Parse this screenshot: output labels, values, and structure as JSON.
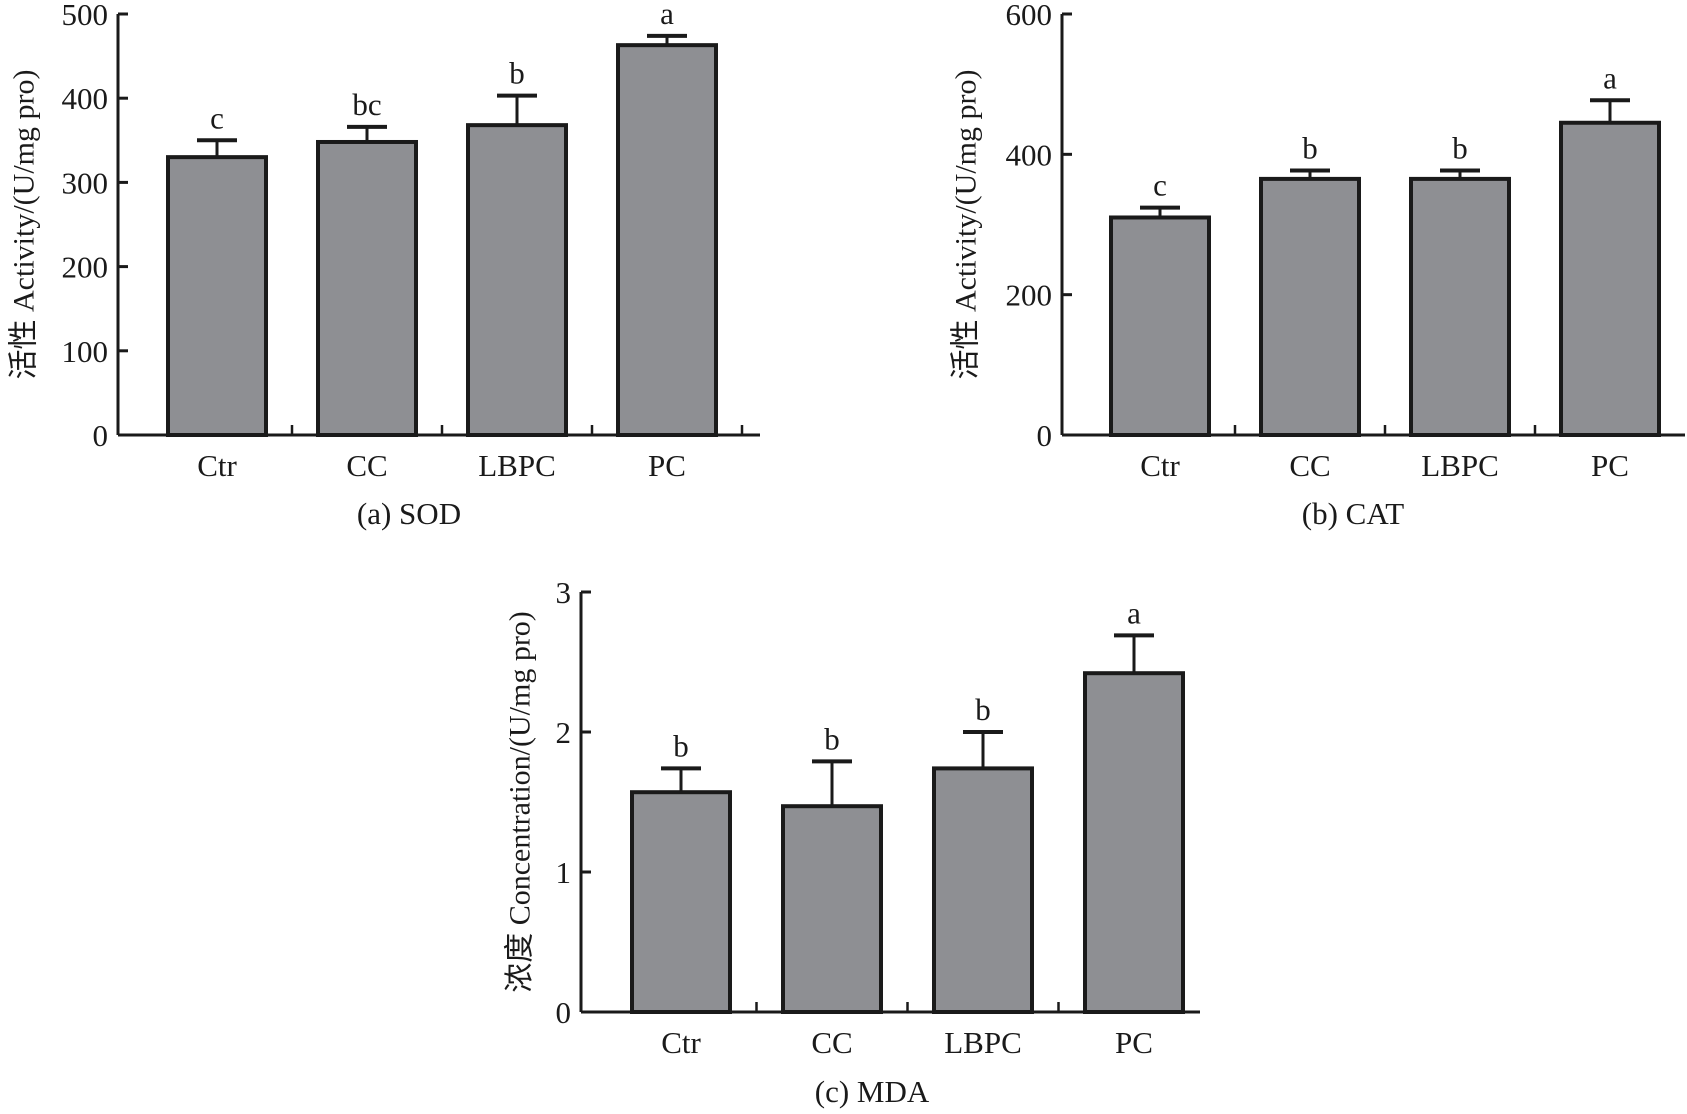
{
  "chart_data": [
    {
      "type": "bar",
      "title": "(a) SOD",
      "xlabel": "",
      "ylabel": "活性 Activity/(U/mg pro)",
      "categories": [
        "Ctr",
        "CC",
        "LBPC",
        "PC"
      ],
      "values": [
        330,
        348,
        368,
        463
      ],
      "error_upper": [
        350,
        366,
        403,
        474
      ],
      "significance_letters": [
        "c",
        "bc",
        "b",
        "a"
      ],
      "ylim": [
        0,
        500
      ],
      "yticks": [
        0,
        100,
        200,
        300,
        400,
        500
      ],
      "grid": false,
      "bar_color": "#8e8f93"
    },
    {
      "type": "bar",
      "title": "(b) CAT",
      "xlabel": "",
      "ylabel": "活性 Activity/(U/mg pro)",
      "categories": [
        "Ctr",
        "CC",
        "LBPC",
        "PC"
      ],
      "values": [
        310,
        365,
        365,
        445
      ],
      "error_upper": [
        324,
        377,
        377,
        477
      ],
      "significance_letters": [
        "c",
        "b",
        "b",
        "a"
      ],
      "ylim": [
        0,
        600
      ],
      "yticks": [
        0,
        200,
        400,
        600
      ],
      "grid": false,
      "bar_color": "#8e8f93"
    },
    {
      "type": "bar",
      "title": "(c) MDA",
      "xlabel": "",
      "ylabel": "浓度 Concentration/(U/mg pro)",
      "categories": [
        "Ctr",
        "CC",
        "LBPC",
        "PC"
      ],
      "values": [
        1.57,
        1.47,
        1.74,
        2.42
      ],
      "error_upper": [
        1.74,
        1.79,
        2.0,
        2.69
      ],
      "significance_letters": [
        "b",
        "b",
        "b",
        "a"
      ],
      "ylim": [
        0,
        3
      ],
      "yticks": [
        0,
        1,
        2,
        3
      ],
      "grid": false,
      "bar_color": "#8e8f93"
    }
  ]
}
